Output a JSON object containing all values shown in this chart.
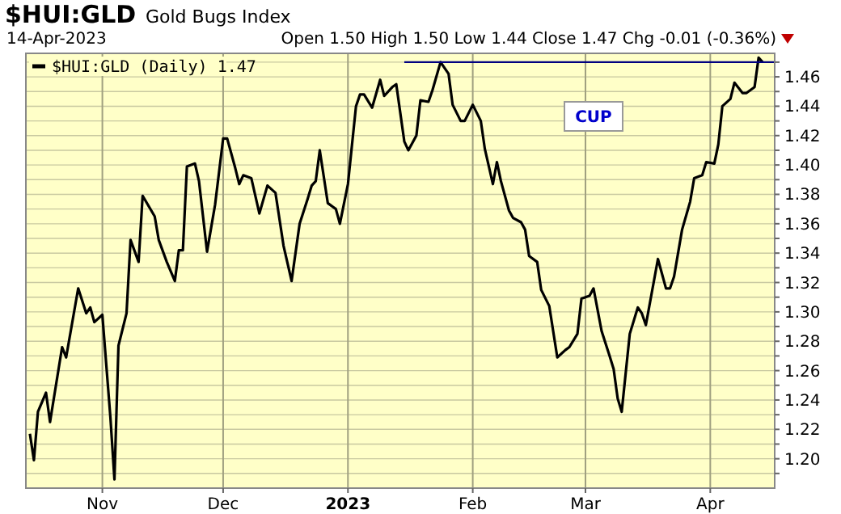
{
  "chart_data": {
    "type": "line",
    "title": "$HUI:GLD",
    "subtitle": "Gold Bugs Index",
    "annotations": [
      "14-Apr-2023",
      "Open 1.50 High 1.50 Low 1.44 Close 1.47 Chg -0.01 (-0.36%)",
      "CUP"
    ],
    "xlim": [
      "2022-10-13",
      "2023-04-17"
    ],
    "xticks": [
      {
        "value": "2022-11-01",
        "label": "Nov"
      },
      {
        "value": "2022-12-01",
        "label": "Dec"
      },
      {
        "value": "2023-01-01",
        "label": "2023"
      },
      {
        "value": "2023-02-01",
        "label": "Feb"
      },
      {
        "value": "2023-03-01",
        "label": "Mar"
      },
      {
        "value": "2023-04-01",
        "label": "Apr"
      }
    ],
    "ylim": [
      1.18,
      1.476
    ],
    "yticks": [
      {
        "value": 1.19,
        "label": null
      },
      {
        "value": 1.2,
        "label": "1.20"
      },
      {
        "value": 1.21,
        "label": null
      },
      1.22,
      {
        "value": 1.23,
        "label": null
      },
      1.24,
      {
        "value": 1.25,
        "label": null
      },
      1.26,
      {
        "value": 1.27,
        "label": null
      },
      1.28,
      {
        "value": 1.29,
        "label": null
      },
      {
        "value": 1.3,
        "label": "1.30"
      },
      {
        "value": 1.31,
        "label": null
      },
      1.32,
      {
        "value": 1.33,
        "label": null
      },
      1.34,
      {
        "value": 1.35,
        "label": null
      },
      1.36,
      {
        "value": 1.37,
        "label": null
      },
      1.38,
      {
        "value": 1.39,
        "label": null
      },
      {
        "value": 1.4,
        "label": "1.40"
      },
      {
        "value": 1.41,
        "label": null
      },
      1.42,
      {
        "value": 1.43,
        "label": null
      },
      1.44,
      {
        "value": 1.45,
        "label": null
      },
      1.46,
      {
        "value": 1.47,
        "label": null
      }
    ],
    "grid": true,
    "legend": "top left",
    "marker": "none",
    "line_style": "solid",
    "series": [
      {
        "name": "$HUI:GLD (Daily) 1.47",
        "color": "#000000",
        "x": [
          "2022-10-14",
          "2022-10-15",
          "2022-10-16",
          "2022-10-18",
          "2022-10-19",
          "2022-10-22",
          "2022-10-23",
          "2022-10-26",
          "2022-10-28",
          "2022-10-29",
          "2022-10-30",
          "2022-11-01",
          "2022-11-03",
          "2022-11-04",
          "2022-11-05",
          "2022-11-07",
          "2022-11-08",
          "2022-11-10",
          "2022-11-11",
          "2022-11-14",
          "2022-11-15",
          "2022-11-17",
          "2022-11-19",
          "2022-11-20",
          "2022-11-21",
          "2022-11-22",
          "2022-11-24",
          "2022-11-25",
          "2022-11-27",
          "2022-11-29",
          "2022-12-01",
          "2022-12-02",
          "2022-12-04",
          "2022-12-05",
          "2022-12-06",
          "2022-12-08",
          "2022-12-10",
          "2022-12-12",
          "2022-12-14",
          "2022-12-16",
          "2022-12-18",
          "2022-12-20",
          "2022-12-22",
          "2022-12-23",
          "2022-12-24",
          "2022-12-25",
          "2022-12-27",
          "2022-12-29",
          "2022-12-30",
          "2023-01-01",
          "2023-01-03",
          "2023-01-04",
          "2023-01-05",
          "2023-01-07",
          "2023-01-09",
          "2023-01-10",
          "2023-01-12",
          "2023-01-13",
          "2023-01-15",
          "2023-01-16",
          "2023-01-18",
          "2023-01-19",
          "2023-01-21",
          "2023-01-22",
          "2023-01-24",
          "2023-01-26",
          "2023-01-27",
          "2023-01-29",
          "2023-01-30",
          "2023-02-01",
          "2023-02-03",
          "2023-02-04",
          "2023-02-06",
          "2023-02-07",
          "2023-02-08",
          "2023-02-10",
          "2023-02-11",
          "2023-02-13",
          "2023-02-14",
          "2023-02-15",
          "2023-02-17",
          "2023-02-18",
          "2023-02-20",
          "2023-02-22",
          "2023-02-24",
          "2023-02-25",
          "2023-02-27",
          "2023-02-28",
          "2023-03-02",
          "2023-03-03",
          "2023-03-05",
          "2023-03-07",
          "2023-03-08",
          "2023-03-09",
          "2023-03-10",
          "2023-03-12",
          "2023-03-14",
          "2023-03-15",
          "2023-03-16",
          "2023-03-18",
          "2023-03-19",
          "2023-03-21",
          "2023-03-22",
          "2023-03-23",
          "2023-03-25",
          "2023-03-27",
          "2023-03-28",
          "2023-03-30",
          "2023-03-31",
          "2023-04-02",
          "2023-04-03",
          "2023-04-04",
          "2023-04-06",
          "2023-04-07",
          "2023-04-09",
          "2023-04-10",
          "2023-04-12",
          "2023-04-13",
          "2023-04-14"
        ],
        "values": [
          1.217,
          1.199,
          1.232,
          1.245,
          1.225,
          1.276,
          1.269,
          1.316,
          1.299,
          1.303,
          1.293,
          1.298,
          1.228,
          1.186,
          1.277,
          1.299,
          1.349,
          1.334,
          1.379,
          1.365,
          1.349,
          1.334,
          1.321,
          1.342,
          1.342,
          1.399,
          1.401,
          1.389,
          1.341,
          1.373,
          1.418,
          1.418,
          1.398,
          1.387,
          1.393,
          1.391,
          1.367,
          1.386,
          1.381,
          1.345,
          1.321,
          1.36,
          1.377,
          1.386,
          1.389,
          1.41,
          1.374,
          1.37,
          1.36,
          1.387,
          1.44,
          1.448,
          1.448,
          1.439,
          1.458,
          1.447,
          1.453,
          1.455,
          1.416,
          1.41,
          1.42,
          1.444,
          1.443,
          1.451,
          1.47,
          1.462,
          1.441,
          1.43,
          1.43,
          1.441,
          1.43,
          1.411,
          1.387,
          1.402,
          1.389,
          1.369,
          1.364,
          1.361,
          1.356,
          1.338,
          1.334,
          1.315,
          1.304,
          1.269,
          1.274,
          1.276,
          1.285,
          1.309,
          1.311,
          1.316,
          1.287,
          1.27,
          1.261,
          1.241,
          1.232,
          1.285,
          1.303,
          1.299,
          1.291,
          1.321,
          1.336,
          1.316,
          1.316,
          1.324,
          1.356,
          1.375,
          1.391,
          1.393,
          1.402,
          1.401,
          1.414,
          1.44,
          1.445,
          1.456,
          1.449,
          1.449,
          1.453,
          1.473,
          1.47
        ]
      },
      {
        "color": "#000080",
        "x": [
          "2023-01-15",
          "2023-04-17"
        ],
        "values": [
          1.47,
          1.47
        ]
      }
    ]
  }
}
